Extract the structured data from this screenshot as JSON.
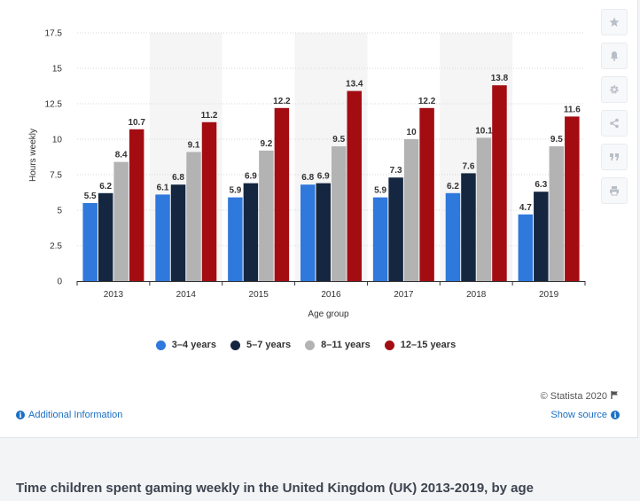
{
  "chart_data": {
    "type": "bar",
    "categories": [
      "2013",
      "2014",
      "2015",
      "2016",
      "2017",
      "2018",
      "2019"
    ],
    "series": [
      {
        "name": "3–4 years",
        "color": "#2f78dc",
        "values": [
          5.5,
          6.1,
          5.9,
          6.8,
          5.9,
          6.2,
          4.7
        ]
      },
      {
        "name": "5–7 years",
        "color": "#152640",
        "values": [
          6.2,
          6.8,
          6.9,
          6.9,
          7.3,
          7.6,
          6.3
        ]
      },
      {
        "name": "8–11 years",
        "color": "#b3b3b3",
        "values": [
          8.4,
          9.1,
          9.2,
          9.5,
          10,
          10.1,
          9.5
        ]
      },
      {
        "name": "12–15 years",
        "color": "#a30d12",
        "values": [
          10.7,
          11.2,
          12.2,
          13.4,
          12.2,
          13.8,
          11.6
        ]
      }
    ],
    "yticks": [
      "0",
      "2.5",
      "5",
      "7.5",
      "10",
      "12.5",
      "15",
      "17.5"
    ],
    "ylim": [
      0,
      17.5
    ],
    "xlabel": "Age group",
    "ylabel": "Hours weekly",
    "grid": true,
    "legend_position": "bottom"
  },
  "credit": "© Statista 2020",
  "links": {
    "additional_info": "Additional Information",
    "show_source": "Show source"
  },
  "caption": "Time children spent gaming weekly in the United Kingdom (UK) 2013-2019, by age",
  "toolbar": [
    {
      "name": "star-button",
      "icon": "star-icon"
    },
    {
      "name": "notification-button",
      "icon": "bell-icon"
    },
    {
      "name": "settings-button",
      "icon": "gear-icon"
    },
    {
      "name": "share-button",
      "icon": "share-icon"
    },
    {
      "name": "cite-button",
      "icon": "quote-icon"
    },
    {
      "name": "print-button",
      "icon": "print-icon"
    }
  ]
}
